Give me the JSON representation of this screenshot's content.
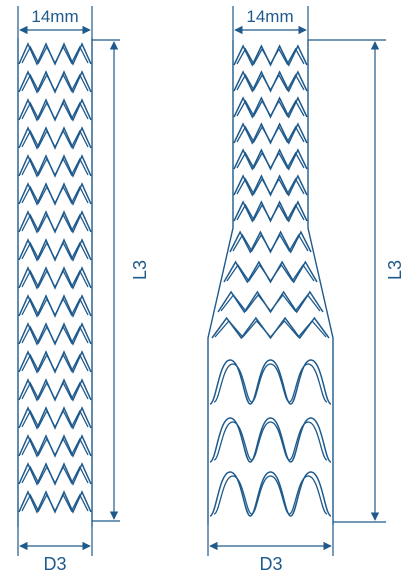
{
  "left_stent": {
    "width_label": "14mm",
    "length_label": "L3",
    "diameter_label": "D3"
  },
  "right_stent": {
    "width_label": "14mm",
    "length_label": "L3",
    "diameter_label": "D3"
  },
  "colors": {
    "line": "#1f5a8c",
    "background": "#ffffff"
  }
}
